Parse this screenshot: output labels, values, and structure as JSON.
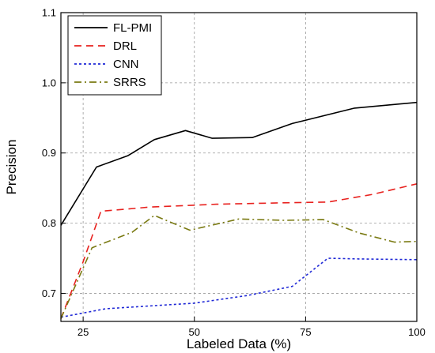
{
  "chart_data": {
    "type": "line",
    "xlabel": "Labeled Data (%)",
    "ylabel": "Precision",
    "xlim": [
      20,
      100
    ],
    "ylim": [
      0.66,
      1.1
    ],
    "x_ticks": [
      25,
      50,
      75,
      100
    ],
    "y_ticks": [
      0.7,
      0.8,
      0.9,
      1.0,
      1.1
    ],
    "x_tick_labels": [
      "25",
      "50",
      "75",
      "100"
    ],
    "y_tick_labels": [
      "0.7",
      "0.8",
      "0.9",
      "1.0",
      "1.1"
    ],
    "grid": true,
    "legend_position": "top-left",
    "series": [
      {
        "name": "FL-PMI",
        "color": "#000000",
        "dash": "solid",
        "x": [
          20,
          28,
          35,
          41,
          48,
          54,
          63,
          72,
          86,
          100
        ],
        "y": [
          0.797,
          0.88,
          0.896,
          0.919,
          0.932,
          0.921,
          0.922,
          0.942,
          0.964,
          0.972
        ]
      },
      {
        "name": "DRL",
        "color": "#e8221f",
        "dash": "dashed",
        "x": [
          20,
          25,
          29,
          40,
          55,
          70,
          80,
          90,
          100
        ],
        "y": [
          0.664,
          0.745,
          0.817,
          0.823,
          0.827,
          0.829,
          0.83,
          0.841,
          0.856
        ]
      },
      {
        "name": "CNN",
        "color": "#1f28d6",
        "dash": "dotted",
        "x": [
          20,
          30,
          40,
          50,
          62,
          72,
          80,
          87,
          100
        ],
        "y": [
          0.666,
          0.678,
          0.682,
          0.686,
          0.697,
          0.71,
          0.75,
          0.749,
          0.748
        ]
      },
      {
        "name": "SRRS",
        "color": "#7a7a12",
        "dash": "dashdot",
        "x": [
          20,
          27,
          36,
          41,
          49,
          60,
          70,
          79,
          87,
          95,
          100
        ],
        "y": [
          0.664,
          0.765,
          0.787,
          0.811,
          0.79,
          0.806,
          0.804,
          0.805,
          0.786,
          0.773,
          0.774
        ]
      }
    ]
  }
}
